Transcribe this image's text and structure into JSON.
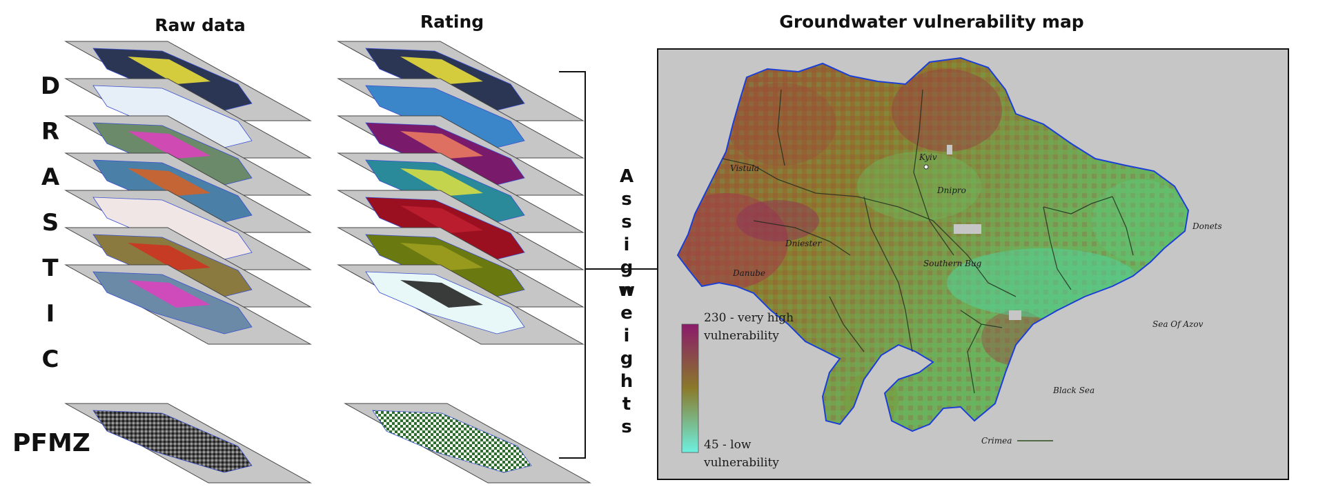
{
  "headers": {
    "raw_data": "Raw data",
    "rating": "Rating",
    "map_title": "Groundwater vulnerability map"
  },
  "drastic_letters": [
    "D",
    "R",
    "A",
    "S",
    "T",
    "I",
    "C"
  ],
  "pfmz_label": "PFMZ",
  "assign_word": [
    "A",
    "s",
    "s",
    "i",
    "g",
    "n"
  ],
  "weights_word": [
    "w",
    "e",
    "i",
    "g",
    "h",
    "t",
    "s"
  ],
  "legend": {
    "high_line1": "230 - very high",
    "high_line2": "vulnerability",
    "low_line1": "45 - low",
    "low_line2": "vulnerability"
  },
  "map_labels": {
    "vistula": "Vistula",
    "kyiv": "Kyiv",
    "dnipro": "Dnipro",
    "donets": "Donets",
    "dniester": "Dniester",
    "danube": "Danube",
    "southern_bug": "Southern Bug",
    "sea_of_azov": "Sea Of Azov",
    "black_sea": "Black Sea",
    "crimea": "Crimea"
  },
  "colors": {
    "map_background": "#c6c6c6",
    "vulnerability_high": "#8b1a6b",
    "vulnerability_mid": "#8a7a2a",
    "vulnerability_low": "#6ef0e0",
    "border": "#1b3fd6"
  }
}
